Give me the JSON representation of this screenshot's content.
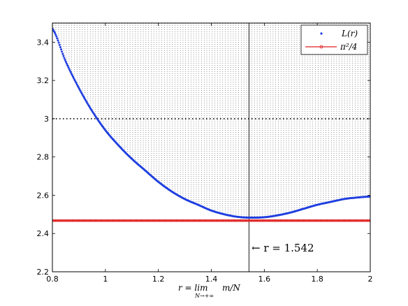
{
  "chart_data": {
    "type": "scatter",
    "xlim": [
      0.8,
      2.0
    ],
    "ylim": [
      2.2,
      3.5
    ],
    "x_ticks": [
      "0.8",
      "1",
      "1.2",
      "1.4",
      "1.6",
      "1.8",
      "2"
    ],
    "x_tick_values": [
      0.8,
      1.0,
      1.2,
      1.4,
      1.6,
      1.8,
      2.0
    ],
    "y_ticks": [
      "2.2",
      "2.4",
      "2.6",
      "2.8",
      "3",
      "3.2",
      "3.4"
    ],
    "y_tick_values": [
      2.2,
      2.4,
      2.6,
      2.8,
      3.0,
      3.2,
      3.4
    ],
    "xlabel": "r = lim m/N",
    "xlabel_main": "r = lim",
    "xlabel_sub": "N→+∞",
    "xlabel_tail": "m/N",
    "grid": false,
    "legend_position": "top-right",
    "series": [
      {
        "name": "L(r)",
        "color": "#1f3fe0",
        "style": "dots",
        "x": [
          0.8,
          0.85,
          0.9,
          0.95,
          1.0,
          1.05,
          1.1,
          1.15,
          1.2,
          1.25,
          1.3,
          1.35,
          1.4,
          1.45,
          1.5,
          1.542,
          1.6,
          1.65,
          1.7,
          1.75,
          1.8,
          1.85,
          1.9,
          1.95,
          2.0
        ],
        "y": [
          3.47,
          3.3,
          3.16,
          3.04,
          2.94,
          2.86,
          2.79,
          2.73,
          2.67,
          2.62,
          2.58,
          2.55,
          2.52,
          2.5,
          2.487,
          2.483,
          2.485,
          2.495,
          2.51,
          2.53,
          2.55,
          2.565,
          2.58,
          2.588,
          2.593
        ]
      },
      {
        "name": "π²/4",
        "color": "#e02020",
        "style": "line-markers",
        "x": [
          0.8,
          2.0
        ],
        "y": [
          2.4674,
          2.4674
        ]
      }
    ],
    "reference_lines": [
      {
        "orientation": "horizontal",
        "value": 3.0,
        "style": "dotted",
        "color": "#000000"
      },
      {
        "orientation": "vertical",
        "value": 1.542,
        "style": "solid",
        "color": "#000000"
      }
    ],
    "annotations": [
      {
        "text": "← r = 1.542",
        "x": 1.542,
        "y": 2.3
      }
    ]
  }
}
